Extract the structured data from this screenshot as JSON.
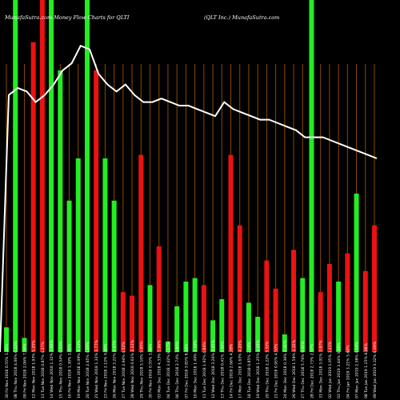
{
  "title_left": "MunafaSutra.com Money Flow Charts for QLTI",
  "title_right": "(QLT Inc.) MunafaSutra.com",
  "colors": {
    "background": "#000000",
    "grid": "#8a4a00",
    "up": "#22ee22",
    "down": "#ee1111",
    "line": "#ffffff",
    "text": "#ffffff"
  },
  "chart_data": {
    "type": "bar",
    "grid": true,
    "legend": "none",
    "ylim": [
      0,
      1
    ],
    "line_ylim": [
      0,
      1
    ],
    "categories": [
      "30 Fri Nov 2018 0.55% 1.46%",
      "08 Thu Nov 2018 4.06% 6.22%",
      "09 Fri Nov 2018 2.06% 7.58%",
      "12 Mon Nov 2018 1.93% 5.25%",
      "13 Tue Nov 2018 0.87% 4.27%",
      "14 Wed Nov 2018 1.32% 3.88%",
      "15 Thu Nov 2018 0.54% 0.93%",
      "16 Fri Nov 2018 1.30% 2.45%",
      "19 Mon Nov 2018 4.09% 9.33%",
      "20 Tue Nov 2018 2.65% 4.49%",
      "21 Wed Nov 2018 1.32% 1.77%",
      "23 Fri Nov 2018 2.12% 0.00%",
      "26 Mon Nov 2018 3.21% 4.97%",
      "27 Tue Nov 2018 2.94% 4.52%",
      "28 Wed Nov 2018 0.63% 2.31%",
      "29 Thu Nov 2018 5.10% 5.95%",
      "30 Fri Nov 2018 0.55% 1.46%",
      "03 Mon Dec 2018 4.33% 5.96%",
      "04 Tue Dec 2018 3.42% 8.17%",
      "06 Thu Dec 2018 2.74% 3.80%",
      "07 Fri Dec 2018 3.85% 8.16%",
      "10 Mon Dec 2018 1.49% 2.16%",
      "11 Tue Dec 2018 1.92% 4.84%",
      "12 Wed Dec 2018 3.26% 3.45%",
      "13 Thu Dec 2018 0.41% 3.99%",
      "14 Fri Dec 2018 2.66% 4.28%",
      "17 Mon Dec 2018 1.63% 4.20%",
      "18 Tue Dec 2018 0.85% 3.16%",
      "19 Wed Dec 2018 1.25% 4.49%",
      "20 Thu Dec 2018 2.22% 3.32%",
      "21 Fri Dec 2018 0.95% 4.50%",
      "24 Mon Dec 2018 0.36% 2.41%",
      "26 Wed Dec 2018 1.59% 4.35%",
      "27 Thu Dec 2018 5.76% 9.91%",
      "28 Fri Dec 2018 2.73% 2.57%",
      "31 Mon Dec 2018 3.01% 3.97%",
      "02 Wed Jan 2019 1.05% 3.41%",
      "03 Thu Jan 2019 3.44% 3.66%",
      "04 Fri Jan 2019 3.21% 5.60%",
      "07 Mon Jan 2019 2.38% 4.54%",
      "08 Tue Jan 2019 1.15% 6.08%",
      "09 Wed Jan 2019 3.32% 6.09%"
    ],
    "series": [
      {
        "values": [
          0.07,
          1.0,
          0.04,
          0.88,
          1.0,
          1.0,
          0.8,
          0.43,
          0.55,
          1.0,
          0.8,
          0.55,
          0.43,
          0.17,
          0.16,
          0.56,
          0.19,
          0.3,
          0.03,
          0.13,
          0.2,
          0.21,
          0.19,
          0.09,
          0.15,
          0.56,
          0.36,
          0.14,
          0.1,
          0.26,
          0.18,
          0.05,
          0.29,
          0.21,
          1.0,
          0.17,
          0.25,
          0.2,
          0.28,
          0.45,
          0.23,
          0.36
        ]
      },
      {
        "values": [
          0.73,
          0.75,
          0.74,
          0.71,
          0.73,
          0.76,
          0.8,
          0.82,
          0.87,
          0.86,
          0.79,
          0.76,
          0.74,
          0.76,
          0.73,
          0.71,
          0.71,
          0.72,
          0.71,
          0.7,
          0.7,
          0.69,
          0.68,
          0.67,
          0.71,
          0.69,
          0.68,
          0.67,
          0.66,
          0.66,
          0.65,
          0.64,
          0.63,
          0.61,
          0.61,
          0.61,
          0.6,
          0.59,
          0.58,
          0.57,
          0.56,
          0.55
        ]
      }
    ],
    "bar_colors": [
      "up",
      "up",
      "up",
      "down",
      "down",
      "up",
      "up",
      "up",
      "up",
      "up",
      "down",
      "up",
      "up",
      "down",
      "down",
      "down",
      "up",
      "down",
      "up",
      "up",
      "up",
      "up",
      "down",
      "up",
      "up",
      "down",
      "down",
      "up",
      "up",
      "down",
      "down",
      "up",
      "down",
      "up",
      "up",
      "down",
      "down",
      "up",
      "down",
      "up",
      "down",
      "down"
    ]
  }
}
